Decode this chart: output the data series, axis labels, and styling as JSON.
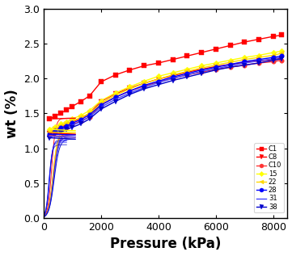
{
  "title": "",
  "xlabel": "Pressure (kPa)",
  "ylabel": "wt (%)",
  "xlim": [
    0,
    8500
  ],
  "ylim": [
    0.0,
    3.0
  ],
  "xticks": [
    0,
    2000,
    4000,
    6000,
    8000
  ],
  "yticks": [
    0.0,
    0.5,
    1.0,
    1.5,
    2.0,
    2.5,
    3.0
  ],
  "series": [
    {
      "label": "C1",
      "color": "#FF0000",
      "marker": "s",
      "markersize": 4,
      "linewidth": 1.0,
      "pressure": [
        200,
        400,
        600,
        800,
        1000,
        1300,
        1600,
        2000,
        2500,
        3000,
        3500,
        4000,
        4500,
        5000,
        5500,
        6000,
        6500,
        7000,
        7500,
        8000,
        8300
      ],
      "wt": [
        1.42,
        1.46,
        1.5,
        1.55,
        1.6,
        1.67,
        1.75,
        1.95,
        2.05,
        2.12,
        2.18,
        2.22,
        2.27,
        2.32,
        2.37,
        2.42,
        2.47,
        2.52,
        2.56,
        2.6,
        2.62
      ]
    },
    {
      "label": "C8",
      "color": "#FF0000",
      "marker": "v",
      "markersize": 4,
      "linewidth": 1.0,
      "pressure": [
        200,
        400,
        600,
        800,
        1000,
        1300,
        1600,
        2000,
        2500,
        3000,
        3500,
        4000,
        4500,
        5000,
        5500,
        6000,
        6500,
        7000,
        7500,
        8000,
        8300
      ],
      "wt": [
        1.22,
        1.27,
        1.3,
        1.34,
        1.38,
        1.43,
        1.5,
        1.67,
        1.78,
        1.86,
        1.93,
        1.99,
        2.04,
        2.09,
        2.13,
        2.17,
        2.2,
        2.23,
        2.25,
        2.27,
        2.29
      ]
    },
    {
      "label": "C10",
      "color": "#FF3333",
      "marker": "o",
      "markersize": 4,
      "linewidth": 1.0,
      "pressure": [
        200,
        400,
        600,
        800,
        1000,
        1300,
        1600,
        2000,
        2500,
        3000,
        3500,
        4000,
        4500,
        5000,
        5500,
        6000,
        6500,
        7000,
        7500,
        8000,
        8300
      ],
      "wt": [
        1.18,
        1.23,
        1.27,
        1.3,
        1.34,
        1.39,
        1.45,
        1.62,
        1.73,
        1.82,
        1.89,
        1.95,
        2.0,
        2.05,
        2.09,
        2.13,
        2.16,
        2.19,
        2.22,
        2.24,
        2.26
      ]
    },
    {
      "label": "15",
      "color": "#FFFF00",
      "marker": "D",
      "markersize": 3.5,
      "linewidth": 1.0,
      "pressure": [
        200,
        400,
        600,
        800,
        1000,
        1300,
        1600,
        2000,
        2500,
        3000,
        3500,
        4000,
        4500,
        5000,
        5500,
        6000,
        6500,
        7000,
        7500,
        8000,
        8300
      ],
      "wt": [
        1.27,
        1.31,
        1.35,
        1.38,
        1.42,
        1.47,
        1.54,
        1.68,
        1.79,
        1.88,
        1.96,
        2.03,
        2.08,
        2.13,
        2.18,
        2.22,
        2.26,
        2.3,
        2.33,
        2.37,
        2.39
      ]
    },
    {
      "label": "22",
      "color": "#FFD700",
      "marker": "<",
      "markersize": 4,
      "linewidth": 1.0,
      "pressure": [
        200,
        400,
        600,
        800,
        1000,
        1300,
        1600,
        2000,
        2500,
        3000,
        3500,
        4000,
        4500,
        5000,
        5500,
        6000,
        6500,
        7000,
        7500,
        8000,
        8300
      ],
      "wt": [
        1.23,
        1.28,
        1.32,
        1.35,
        1.39,
        1.44,
        1.5,
        1.64,
        1.76,
        1.85,
        1.93,
        1.99,
        2.05,
        2.1,
        2.15,
        2.19,
        2.23,
        2.27,
        2.3,
        2.33,
        2.36
      ]
    },
    {
      "label": "28",
      "color": "#0000FF",
      "marker": "o",
      "markersize": 4,
      "linewidth": 1.0,
      "pressure": [
        200,
        400,
        600,
        800,
        1000,
        1300,
        1600,
        2000,
        2500,
        3000,
        3500,
        4000,
        4500,
        5000,
        5500,
        6000,
        6500,
        7000,
        7500,
        8000,
        8300
      ],
      "wt": [
        1.2,
        1.25,
        1.29,
        1.32,
        1.36,
        1.41,
        1.48,
        1.62,
        1.73,
        1.82,
        1.9,
        1.96,
        2.02,
        2.07,
        2.12,
        2.16,
        2.2,
        2.24,
        2.27,
        2.3,
        2.32
      ]
    },
    {
      "label": "31",
      "color": "#4444FF",
      "marker": "None",
      "markersize": 0,
      "linewidth": 1.0,
      "pressure": [
        200,
        400,
        600,
        800,
        1000,
        1300,
        1600,
        2000,
        2500,
        3000,
        3500,
        4000,
        4500,
        5000,
        5500,
        6000,
        6500,
        7000,
        7500,
        8000,
        8300
      ],
      "wt": [
        1.17,
        1.22,
        1.26,
        1.29,
        1.33,
        1.38,
        1.45,
        1.59,
        1.7,
        1.79,
        1.87,
        1.94,
        2.0,
        2.05,
        2.1,
        2.14,
        2.18,
        2.22,
        2.25,
        2.28,
        2.3
      ]
    },
    {
      "label": "38",
      "color": "#0000CC",
      "marker": "v",
      "markersize": 4,
      "linewidth": 1.0,
      "pressure": [
        200,
        400,
        600,
        800,
        1000,
        1300,
        1600,
        2000,
        2500,
        3000,
        3500,
        4000,
        4500,
        5000,
        5500,
        6000,
        6500,
        7000,
        7500,
        8000,
        8300
      ],
      "wt": [
        1.15,
        1.2,
        1.23,
        1.27,
        1.3,
        1.35,
        1.42,
        1.56,
        1.67,
        1.77,
        1.85,
        1.91,
        1.97,
        2.02,
        2.07,
        2.12,
        2.16,
        2.19,
        2.22,
        2.26,
        2.28
      ]
    }
  ],
  "background_color": "#ffffff",
  "legend_fontsize": 6.0,
  "axis_fontsize": 12,
  "tick_fontsize": 9
}
